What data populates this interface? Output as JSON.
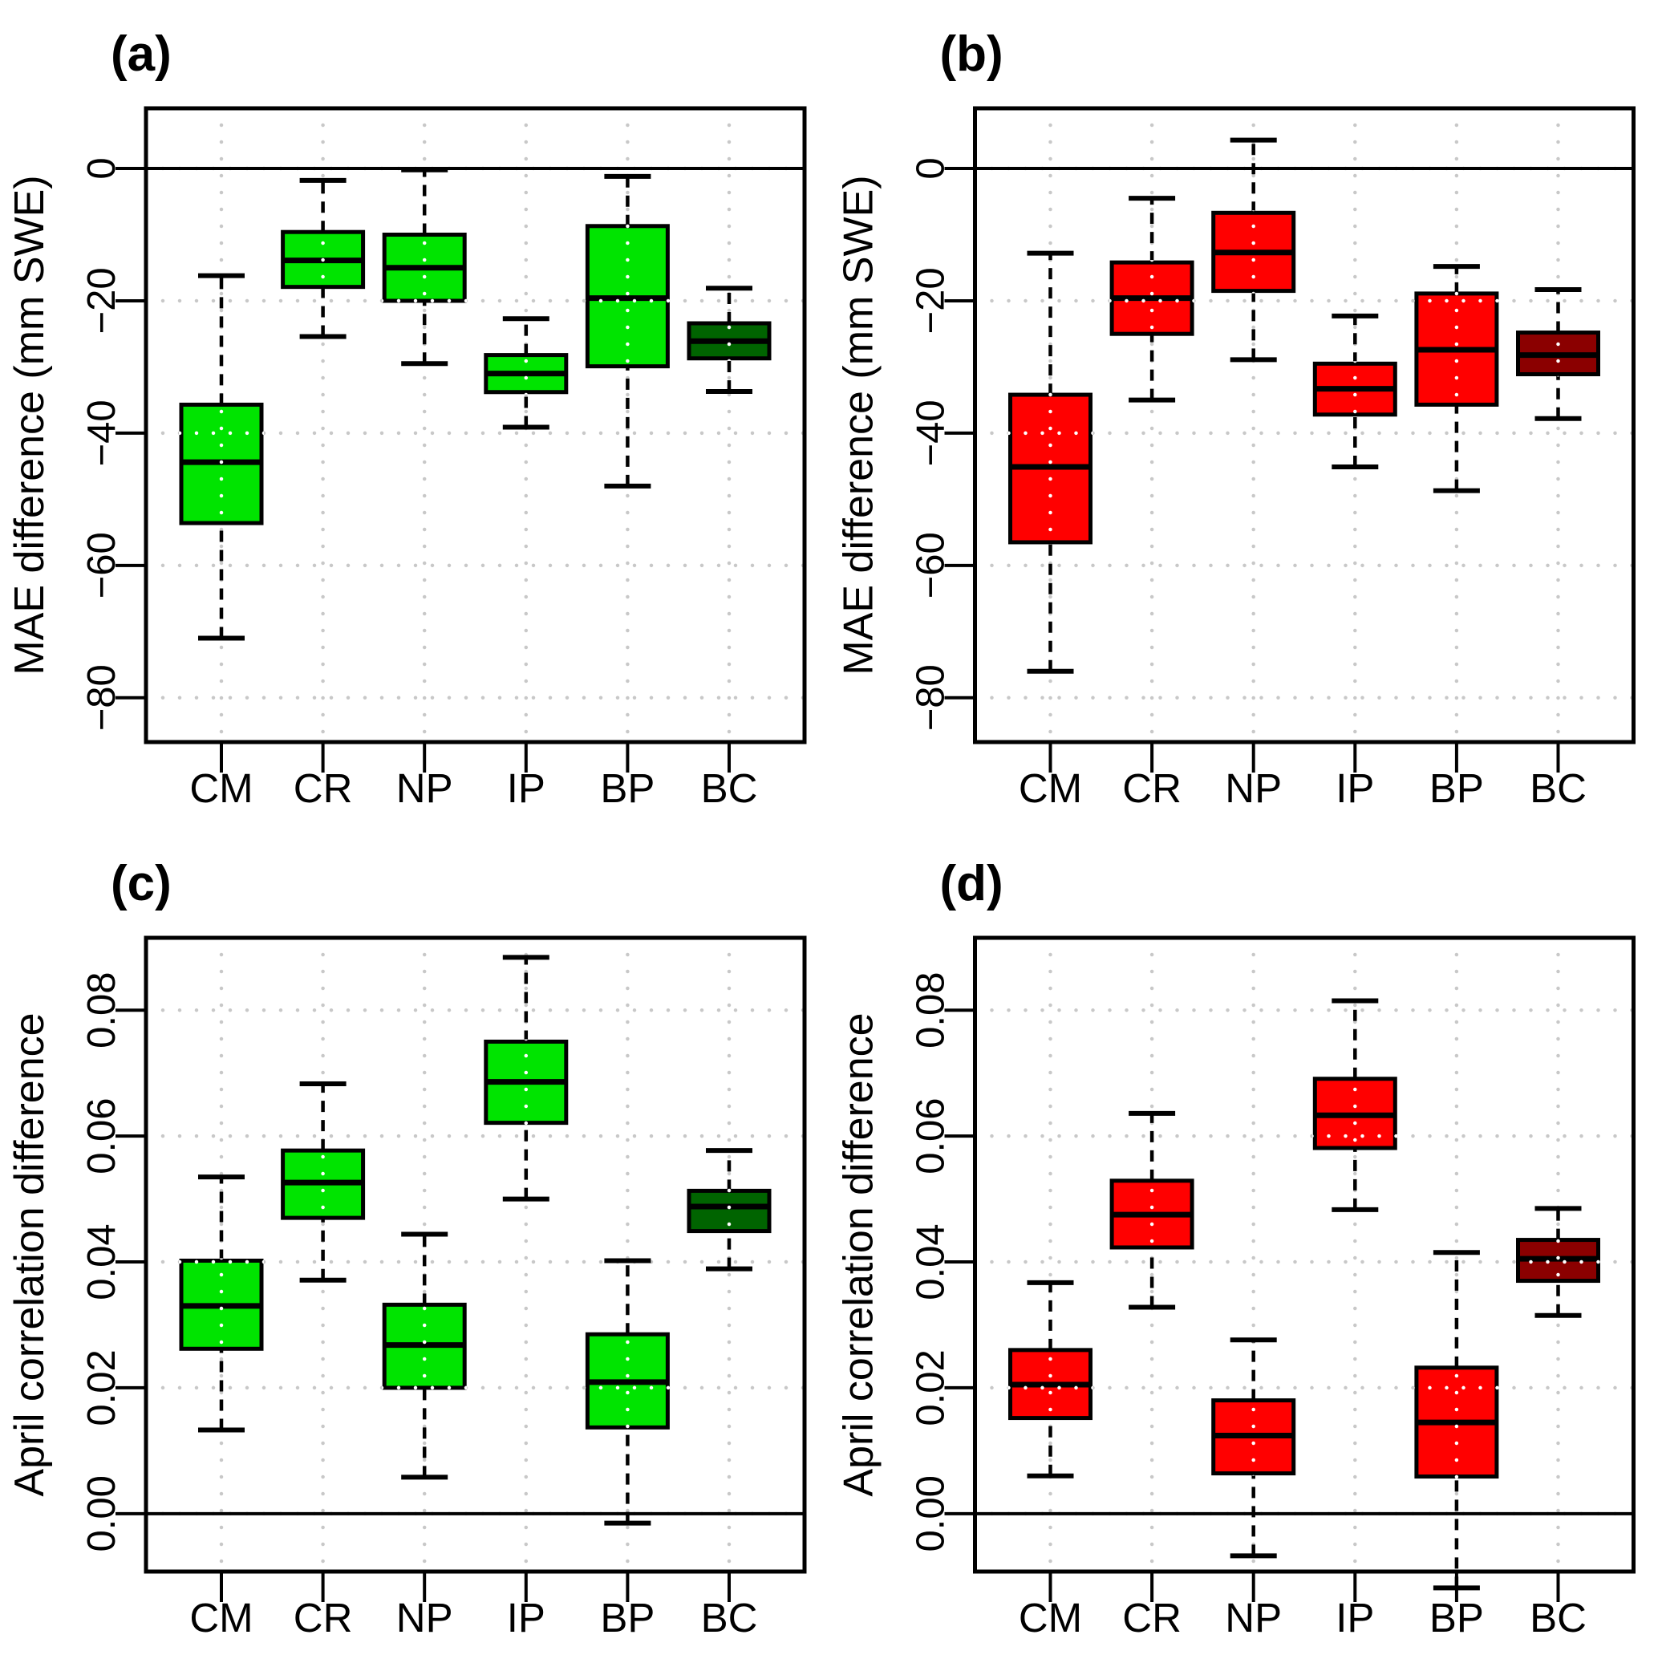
{
  "figure": {
    "background": "#ffffff",
    "grid_color": "#c8c8c8",
    "grid_overlay_color": "#ffffff",
    "frame_color": "#000000",
    "categories": [
      "CM",
      "CR",
      "NP",
      "IP",
      "BP",
      "BC"
    ]
  },
  "chart_data": [
    {
      "type": "boxplot",
      "panel_label": "(a)",
      "ylabel": "MAE difference (mm SWE)",
      "categories": [
        "CM",
        "CR",
        "NP",
        "IP",
        "BP",
        "BC"
      ],
      "yticks": [
        0,
        -20,
        -40,
        -60,
        -80
      ],
      "ytick_labels": [
        "0",
        "−20",
        "−40",
        "−60",
        "−80"
      ],
      "ylim": [
        -86.7,
        9.1
      ],
      "reference_line": 0,
      "grid": true,
      "boxes": [
        {
          "category": "CM",
          "whisker_low": -71.0,
          "q1": -53.6,
          "median": -44.4,
          "q3": -35.7,
          "whisker_high": -16.2,
          "fill": "#00e400"
        },
        {
          "category": "CR",
          "whisker_low": -25.4,
          "q1": -17.9,
          "median": -13.9,
          "q3": -9.6,
          "whisker_high": -1.8,
          "fill": "#00e400"
        },
        {
          "category": "NP",
          "whisker_low": -29.5,
          "q1": -20.0,
          "median": -15.0,
          "q3": -10.0,
          "whisker_high": -0.2,
          "fill": "#00e400"
        },
        {
          "category": "IP",
          "whisker_low": -39.1,
          "q1": -33.8,
          "median": -31.0,
          "q3": -28.2,
          "whisker_high": -22.7,
          "fill": "#00e400"
        },
        {
          "category": "BP",
          "whisker_low": -48.0,
          "q1": -29.9,
          "median": -19.6,
          "q3": -8.7,
          "whisker_high": -1.2,
          "fill": "#00e400"
        },
        {
          "category": "BC",
          "whisker_low": -33.7,
          "q1": -28.7,
          "median": -26.1,
          "q3": -23.4,
          "whisker_high": -18.1,
          "fill": "#006400"
        }
      ]
    },
    {
      "type": "boxplot",
      "panel_label": "(b)",
      "ylabel": "MAE difference (mm SWE)",
      "categories": [
        "CM",
        "CR",
        "NP",
        "IP",
        "BP",
        "BC"
      ],
      "yticks": [
        0,
        -20,
        -40,
        -60,
        -80
      ],
      "ytick_labels": [
        "0",
        "−20",
        "−40",
        "−60",
        "−80"
      ],
      "ylim": [
        -86.7,
        9.1
      ],
      "reference_line": 0,
      "grid": true,
      "boxes": [
        {
          "category": "CM",
          "whisker_low": -76.0,
          "q1": -56.5,
          "median": -45.1,
          "q3": -34.2,
          "whisker_high": -12.8,
          "fill": "#ff0000"
        },
        {
          "category": "CR",
          "whisker_low": -35.0,
          "q1": -25.0,
          "median": -19.6,
          "q3": -14.2,
          "whisker_high": -4.5,
          "fill": "#ff0000"
        },
        {
          "category": "NP",
          "whisker_low": -28.9,
          "q1": -18.5,
          "median": -12.7,
          "q3": -6.7,
          "whisker_high": 4.3,
          "fill": "#ff0000"
        },
        {
          "category": "IP",
          "whisker_low": -45.1,
          "q1": -37.2,
          "median": -33.3,
          "q3": -29.5,
          "whisker_high": -22.3,
          "fill": "#ff0000"
        },
        {
          "category": "BP",
          "whisker_low": -48.7,
          "q1": -35.7,
          "median": -27.4,
          "q3": -18.9,
          "whisker_high": -14.8,
          "fill": "#ff0000"
        },
        {
          "category": "BC",
          "whisker_low": -37.8,
          "q1": -31.1,
          "median": -28.2,
          "q3": -24.8,
          "whisker_high": -18.3,
          "fill": "#8b0000"
        }
      ]
    },
    {
      "type": "boxplot",
      "panel_label": "(c)",
      "ylabel": "April correlation difference",
      "categories": [
        "CM",
        "CR",
        "NP",
        "IP",
        "BP",
        "BC"
      ],
      "yticks": [
        0,
        0.02,
        0.04,
        0.06,
        0.08
      ],
      "ytick_labels": [
        "0.00",
        "0.02",
        "0.04",
        "0.06",
        "0.08"
      ],
      "ylim": [
        -0.0092,
        0.0915
      ],
      "reference_line": 0,
      "grid": true,
      "boxes": [
        {
          "category": "CM",
          "whisker_low": 0.0133,
          "q1": 0.0262,
          "median": 0.033,
          "q3": 0.0402,
          "whisker_high": 0.0535,
          "fill": "#00e400"
        },
        {
          "category": "CR",
          "whisker_low": 0.0371,
          "q1": 0.047,
          "median": 0.0526,
          "q3": 0.0577,
          "whisker_high": 0.0683,
          "fill": "#00e400"
        },
        {
          "category": "NP",
          "whisker_low": 0.0058,
          "q1": 0.02,
          "median": 0.0268,
          "q3": 0.0332,
          "whisker_high": 0.0444,
          "fill": "#00e400"
        },
        {
          "category": "IP",
          "whisker_low": 0.05,
          "q1": 0.0621,
          "median": 0.0686,
          "q3": 0.075,
          "whisker_high": 0.0884,
          "fill": "#00e400"
        },
        {
          "category": "BP",
          "whisker_low": -0.0015,
          "q1": 0.0137,
          "median": 0.0209,
          "q3": 0.0285,
          "whisker_high": 0.0402,
          "fill": "#00e400"
        },
        {
          "category": "BC",
          "whisker_low": 0.0389,
          "q1": 0.0449,
          "median": 0.0488,
          "q3": 0.0513,
          "whisker_high": 0.0577,
          "fill": "#006400"
        }
      ]
    },
    {
      "type": "boxplot",
      "panel_label": "(d)",
      "ylabel": "April correlation difference",
      "categories": [
        "CM",
        "CR",
        "NP",
        "IP",
        "BP",
        "BC"
      ],
      "yticks": [
        0,
        0.02,
        0.04,
        0.06,
        0.08
      ],
      "ytick_labels": [
        "0.00",
        "0.02",
        "0.04",
        "0.06",
        "0.08"
      ],
      "ylim": [
        -0.0092,
        0.0915
      ],
      "reference_line": 0,
      "grid": true,
      "boxes": [
        {
          "category": "CM",
          "whisker_low": 0.006,
          "q1": 0.0152,
          "median": 0.0205,
          "q3": 0.026,
          "whisker_high": 0.0367,
          "fill": "#ff0000"
        },
        {
          "category": "CR",
          "whisker_low": 0.0328,
          "q1": 0.0423,
          "median": 0.0475,
          "q3": 0.0529,
          "whisker_high": 0.0636,
          "fill": "#ff0000"
        },
        {
          "category": "NP",
          "whisker_low": -0.0067,
          "q1": 0.0064,
          "median": 0.0124,
          "q3": 0.018,
          "whisker_high": 0.0276,
          "fill": "#ff0000"
        },
        {
          "category": "IP",
          "whisker_low": 0.0483,
          "q1": 0.0581,
          "median": 0.0633,
          "q3": 0.0691,
          "whisker_high": 0.0815,
          "fill": "#ff0000"
        },
        {
          "category": "BP",
          "whisker_low": -0.0118,
          "q1": 0.0059,
          "median": 0.0145,
          "q3": 0.0232,
          "whisker_high": 0.0415,
          "fill": "#ff0000"
        },
        {
          "category": "BC",
          "whisker_low": 0.0315,
          "q1": 0.037,
          "median": 0.0405,
          "q3": 0.0435,
          "whisker_high": 0.0485,
          "fill": "#8b0000"
        }
      ]
    }
  ]
}
